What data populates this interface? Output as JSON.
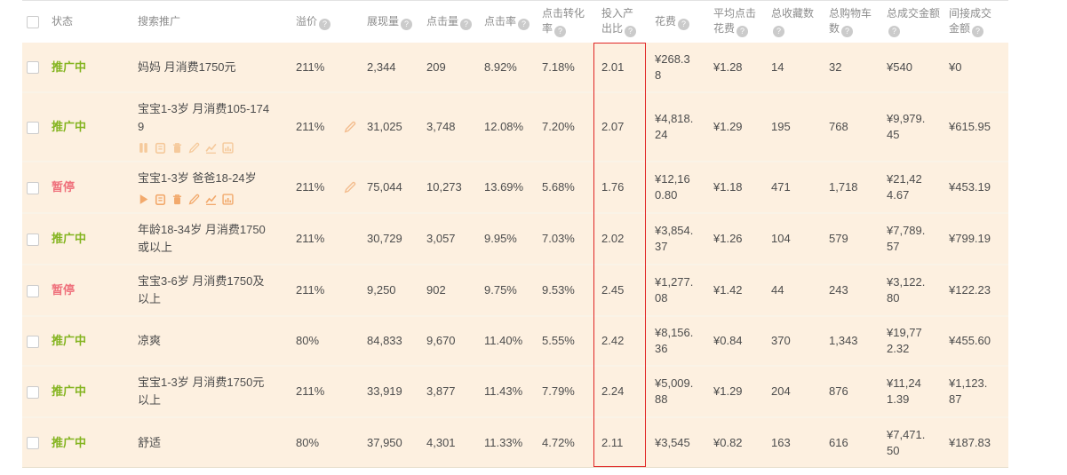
{
  "colors": {
    "row_background": "#fdf0e0",
    "status_active": "#84b420",
    "status_paused": "#ef717c",
    "roi_highlight_border": "#e02626",
    "action_icon": "#f5c99b"
  },
  "table": {
    "help_glyph": "?",
    "columns": [
      {
        "key": "status",
        "label": "状态",
        "help": false
      },
      {
        "key": "name",
        "label": "搜索推广",
        "help": false
      },
      {
        "key": "premium",
        "label": "溢价",
        "help": true
      },
      {
        "key": "impressions",
        "label": "展现量",
        "help": true
      },
      {
        "key": "clicks",
        "label": "点击量",
        "help": true
      },
      {
        "key": "ctr",
        "label": "点击率",
        "help": true
      },
      {
        "key": "conv_rate",
        "label": "点击转化率",
        "help": true
      },
      {
        "key": "roi",
        "label": "投入产出比",
        "help": true
      },
      {
        "key": "cost",
        "label": "花费",
        "help": true
      },
      {
        "key": "avg_click_cost",
        "label": "平均点击花费",
        "help": true
      },
      {
        "key": "favorites",
        "label": "总收藏数",
        "help": true
      },
      {
        "key": "carts",
        "label": "总购物车数",
        "help": true
      },
      {
        "key": "total_amount",
        "label": "总成交金额",
        "help": true
      },
      {
        "key": "indirect_amount",
        "label": "间接成交金额",
        "help": true
      }
    ],
    "rows": [
      {
        "status": "推广中",
        "status_type": "active",
        "name": "妈妈 月消费1750元",
        "premium": "211%",
        "premium_editable": false,
        "actions": null,
        "impressions": "2,344",
        "clicks": "209",
        "ctr": "8.92%",
        "conv_rate": "7.18%",
        "roi": "2.01",
        "cost": "¥268.38",
        "avg_click_cost": "¥1.28",
        "favorites": "14",
        "carts": "32",
        "total_amount": "¥540",
        "indirect_amount": "¥0"
      },
      {
        "status": "推广中",
        "status_type": "active",
        "name": "宝宝1-3岁 月消费105-1749",
        "premium": "211%",
        "premium_editable": true,
        "actions": [
          "pause",
          "clipboard",
          "trash",
          "pencil",
          "line-chart",
          "bar-chart"
        ],
        "impressions": "31,025",
        "clicks": "3,748",
        "ctr": "12.08%",
        "conv_rate": "7.20%",
        "roi": "2.07",
        "cost": "¥4,818.24",
        "avg_click_cost": "¥1.29",
        "favorites": "195",
        "carts": "768",
        "total_amount": "¥9,979.45",
        "indirect_amount": "¥615.95"
      },
      {
        "status": "暂停",
        "status_type": "paused",
        "name": "宝宝1-3岁 爸爸18-24岁",
        "premium": "211%",
        "premium_editable": true,
        "actions": [
          "play",
          "clipboard",
          "trash",
          "pencil",
          "line-chart",
          "bar-chart"
        ],
        "impressions": "75,044",
        "clicks": "10,273",
        "ctr": "13.69%",
        "conv_rate": "5.68%",
        "roi": "1.76",
        "cost": "¥12,160.80",
        "avg_click_cost": "¥1.18",
        "favorites": "471",
        "carts": "1,718",
        "total_amount": "¥21,424.67",
        "indirect_amount": "¥453.19"
      },
      {
        "status": "推广中",
        "status_type": "active",
        "name": "年龄18-34岁 月消费1750或以上",
        "premium": "211%",
        "premium_editable": false,
        "actions": null,
        "impressions": "30,729",
        "clicks": "3,057",
        "ctr": "9.95%",
        "conv_rate": "7.03%",
        "roi": "2.02",
        "cost": "¥3,854.37",
        "avg_click_cost": "¥1.26",
        "favorites": "104",
        "carts": "579",
        "total_amount": "¥7,789.57",
        "indirect_amount": "¥799.19"
      },
      {
        "status": "暂停",
        "status_type": "paused",
        "name": "宝宝3-6岁 月消费1750及以上",
        "premium": "211%",
        "premium_editable": false,
        "actions": null,
        "impressions": "9,250",
        "clicks": "902",
        "ctr": "9.75%",
        "conv_rate": "9.53%",
        "roi": "2.45",
        "cost": "¥1,277.08",
        "avg_click_cost": "¥1.42",
        "favorites": "44",
        "carts": "243",
        "total_amount": "¥3,122.80",
        "indirect_amount": "¥122.23"
      },
      {
        "status": "推广中",
        "status_type": "active",
        "name": "凉爽",
        "premium": "80%",
        "premium_editable": false,
        "actions": null,
        "impressions": "84,833",
        "clicks": "9,670",
        "ctr": "11.40%",
        "conv_rate": "5.55%",
        "roi": "2.42",
        "cost": "¥8,156.36",
        "avg_click_cost": "¥0.84",
        "favorites": "370",
        "carts": "1,343",
        "total_amount": "¥19,772.32",
        "indirect_amount": "¥455.60"
      },
      {
        "status": "推广中",
        "status_type": "active",
        "name": "宝宝1-3岁 月消费1750元以上",
        "premium": "211%",
        "premium_editable": false,
        "actions": null,
        "impressions": "33,919",
        "clicks": "3,877",
        "ctr": "11.43%",
        "conv_rate": "7.79%",
        "roi": "2.24",
        "cost": "¥5,009.88",
        "avg_click_cost": "¥1.29",
        "favorites": "204",
        "carts": "876",
        "total_amount": "¥11,241.39",
        "indirect_amount": "¥1,123.87"
      },
      {
        "status": "推广中",
        "status_type": "active",
        "name": "舒适",
        "premium": "80%",
        "premium_editable": false,
        "actions": null,
        "impressions": "37,950",
        "clicks": "4,301",
        "ctr": "11.33%",
        "conv_rate": "4.72%",
        "roi": "2.11",
        "cost": "¥3,545",
        "avg_click_cost": "¥0.82",
        "favorites": "163",
        "carts": "616",
        "total_amount": "¥7,471.50",
        "indirect_amount": "¥187.83"
      }
    ]
  }
}
